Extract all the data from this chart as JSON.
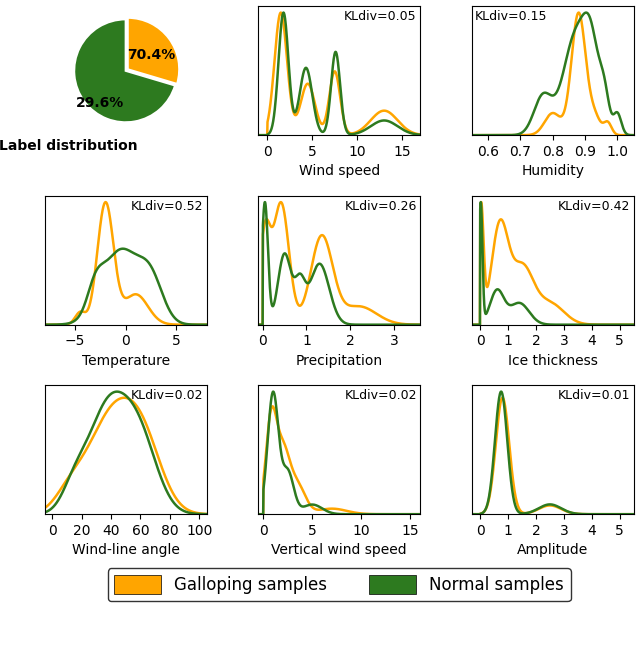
{
  "pie_values": [
    29.6,
    70.4
  ],
  "pie_colors": [
    "#FFA500",
    "#2D7A1F"
  ],
  "pie_labels": [
    "29.6%",
    "70.4%"
  ],
  "orange_color": "#FFA500",
  "green_color": "#2D7A1F",
  "line_width": 1.8,
  "legend_labels": [
    "Galloping samples",
    "Normal samples"
  ]
}
